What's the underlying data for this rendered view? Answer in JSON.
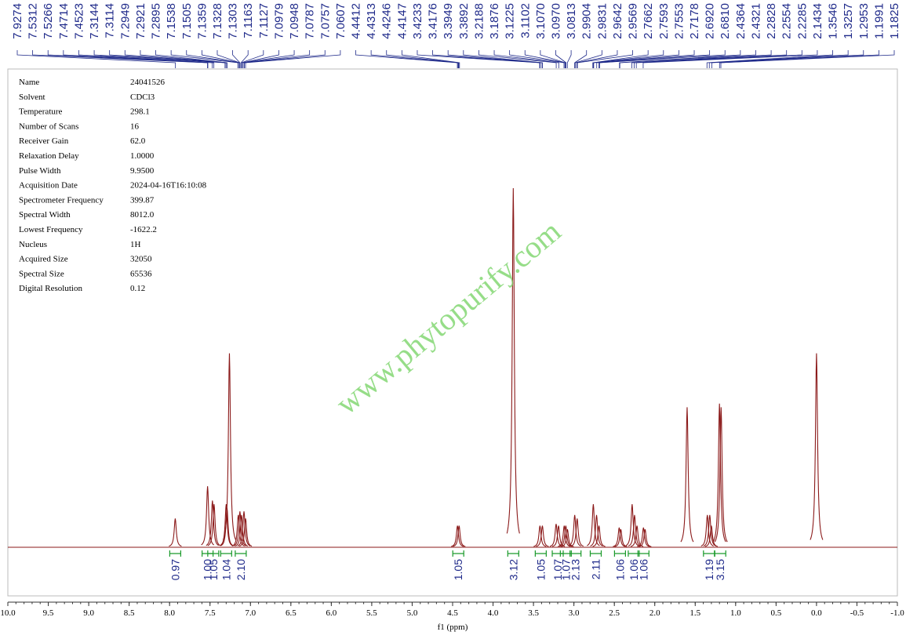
{
  "chart_data": {
    "type": "nmr",
    "xlabel": "f1 (ppm)",
    "xlim": [
      10,
      -1
    ],
    "xticks": [
      {
        "value": 10,
        "label": "10.0"
      },
      9.5,
      {
        "value": 9,
        "label": "9.0"
      },
      8.5,
      {
        "value": 8,
        "label": "8.0"
      },
      7.5,
      {
        "value": 7,
        "label": "7.0"
      },
      6.5,
      {
        "value": 6,
        "label": "6.0"
      },
      5.5,
      {
        "value": 5,
        "label": "5.0"
      },
      4.5,
      {
        "value": 4,
        "label": "4.0"
      },
      3.5,
      {
        "value": 3,
        "label": "3.0"
      },
      2.5,
      {
        "value": 2,
        "label": "2.0"
      },
      1.5,
      {
        "value": 1,
        "label": "1.0"
      },
      0.5,
      {
        "value": 0,
        "label": "0.0"
      },
      -0.5,
      {
        "value": -1,
        "label": "-1.0"
      }
    ],
    "color": "#8b1a1a",
    "label_color": "#1f2a8a",
    "integral_color": "#1a9a2a",
    "peak_labels": [
      "7.9274",
      "7.5312",
      "7.5266",
      "7.4714",
      "7.4523",
      "7.3144",
      "7.3114",
      "7.2949",
      "7.2921",
      "7.2895",
      "7.1538",
      "7.1505",
      "7.1359",
      "7.1328",
      "7.1303",
      "7.1163",
      "7.1127",
      "7.0979",
      "7.0948",
      "7.0787",
      "7.0757",
      "7.0607",
      "4.4412",
      "4.4313",
      "4.4246",
      "4.4147",
      "3.4233",
      "3.4176",
      "3.3949",
      "3.3892",
      "3.2188",
      "3.1876",
      "3.1225",
      "3.1102",
      "3.1070",
      "3.0970",
      "3.0813",
      "2.9904",
      "2.9831",
      "2.9642",
      "2.9569",
      "2.7662",
      "2.7593",
      "2.7553",
      "2.7178",
      "2.6920",
      "2.6810",
      "2.4364",
      "2.4321",
      "2.2828",
      "2.2554",
      "2.2285",
      "2.1434",
      "1.3546",
      "1.3257",
      "1.2953",
      "1.1991",
      "1.1825"
    ],
    "integrals": [
      {
        "ppm": 7.93,
        "label": "0.97"
      },
      {
        "ppm": 7.53,
        "label": "1.00"
      },
      {
        "ppm": 7.46,
        "label": "1.05"
      },
      {
        "ppm": 7.3,
        "label": "1.04"
      },
      {
        "ppm": 7.12,
        "label": "2.10"
      },
      {
        "ppm": 4.43,
        "label": "1.05"
      },
      {
        "ppm": 3.75,
        "label": "3.12"
      },
      {
        "ppm": 3.41,
        "label": "1.05"
      },
      {
        "ppm": 3.2,
        "label": "1.07"
      },
      {
        "ppm": 3.1,
        "label": "1.07"
      },
      {
        "ppm": 2.98,
        "label": "2.13"
      },
      {
        "ppm": 2.73,
        "label": "2.11"
      },
      {
        "ppm": 2.43,
        "label": "1.06"
      },
      {
        "ppm": 2.26,
        "label": "1.06"
      },
      {
        "ppm": 2.14,
        "label": "1.06"
      },
      {
        "ppm": 1.33,
        "label": "1.19"
      },
      {
        "ppm": 1.19,
        "label": "3.15"
      }
    ],
    "peaks": [
      {
        "ppm": 7.93,
        "height": 8
      },
      {
        "ppm": 7.53,
        "height": 17
      },
      {
        "ppm": 7.47,
        "height": 13
      },
      {
        "ppm": 7.45,
        "height": 12
      },
      {
        "ppm": 7.3,
        "height": 12
      },
      {
        "ppm": 7.29,
        "height": 11
      },
      {
        "ppm": 7.26,
        "height": 54
      },
      {
        "ppm": 7.15,
        "height": 9
      },
      {
        "ppm": 7.13,
        "height": 10
      },
      {
        "ppm": 7.11,
        "height": 9
      },
      {
        "ppm": 7.08,
        "height": 10
      },
      {
        "ppm": 7.06,
        "height": 8
      },
      {
        "ppm": 4.44,
        "height": 6
      },
      {
        "ppm": 4.42,
        "height": 6
      },
      {
        "ppm": 3.75,
        "height": 100
      },
      {
        "ppm": 3.42,
        "height": 6
      },
      {
        "ppm": 3.39,
        "height": 6
      },
      {
        "ppm": 3.22,
        "height": 6.5
      },
      {
        "ppm": 3.19,
        "height": 6
      },
      {
        "ppm": 3.12,
        "height": 6
      },
      {
        "ppm": 3.1,
        "height": 6
      },
      {
        "ppm": 3.08,
        "height": 5
      },
      {
        "ppm": 2.99,
        "height": 9
      },
      {
        "ppm": 2.96,
        "height": 8
      },
      {
        "ppm": 2.76,
        "height": 12
      },
      {
        "ppm": 2.72,
        "height": 9
      },
      {
        "ppm": 2.69,
        "height": 6
      },
      {
        "ppm": 2.44,
        "height": 5.5
      },
      {
        "ppm": 2.42,
        "height": 5
      },
      {
        "ppm": 2.28,
        "height": 12
      },
      {
        "ppm": 2.25,
        "height": 9
      },
      {
        "ppm": 2.22,
        "height": 6
      },
      {
        "ppm": 2.14,
        "height": 5.5
      },
      {
        "ppm": 2.12,
        "height": 5
      },
      {
        "ppm": 1.6,
        "height": 39
      },
      {
        "ppm": 1.35,
        "height": 9
      },
      {
        "ppm": 1.32,
        "height": 9
      },
      {
        "ppm": 1.3,
        "height": 6
      },
      {
        "ppm": 1.2,
        "height": 40
      },
      {
        "ppm": 1.18,
        "height": 39
      },
      {
        "ppm": 0,
        "height": 54
      }
    ],
    "watermark": "www.phytopurify.com",
    "parameters": [
      [
        "Name",
        "24041526"
      ],
      [
        "Solvent",
        "CDCl3"
      ],
      [
        "Temperature",
        "298.1"
      ],
      [
        "Number of Scans",
        "16"
      ],
      [
        "Receiver Gain",
        "62.0"
      ],
      [
        "Relaxation Delay",
        "1.0000"
      ],
      [
        "Pulse Width",
        "9.9500"
      ],
      [
        "Acquisition Date",
        "2024-04-16T16:10:08"
      ],
      [
        "Spectrometer Frequency",
        "399.87"
      ],
      [
        "Spectral Width",
        "8012.0"
      ],
      [
        "Lowest Frequency",
        "-1622.2"
      ],
      [
        "Nucleus",
        "1H"
      ],
      [
        "Acquired Size",
        "32050"
      ],
      [
        "Spectral Size",
        "65536"
      ],
      [
        "Digital Resolution",
        "0.12"
      ]
    ]
  }
}
